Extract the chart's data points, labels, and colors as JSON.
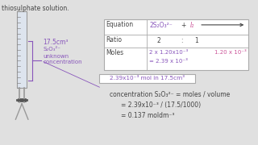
{
  "bg_color": "#e0e0e0",
  "text_color": "#444444",
  "purple_color": "#8855bb",
  "pink_color": "#cc5599",
  "title_text": "thiosulphate solution.",
  "label_17_5": "17.5cm³",
  "label_s2o3": "S₂O₃²⁻",
  "label_unknown": "unknown",
  "label_conc": "concentration",
  "eq_header": "Equation",
  "eq_2s2o3": "2S₂O₃²⁻",
  "eq_plus": "+",
  "eq_i2": "I₂",
  "ratio_header": "Ratio",
  "ratio_2": "2",
  "ratio_colon": ":",
  "ratio_1": "1",
  "moles_header": "Moles",
  "moles_calc1": "2 x 1.20x10⁻³",
  "moles_i2": "1.20 x 10⁻³",
  "moles_calc2": "= 2.39 x 10⁻³",
  "box2_text": "2.39x10⁻³ mol in 17.5cm³",
  "conc_line1": "concentration S₂O₃²⁻ = moles / volume",
  "conc_line2": "= 2.39x10⁻³ / (17.5/1000)",
  "conc_line3": "= 0.137 moldm⁻³"
}
